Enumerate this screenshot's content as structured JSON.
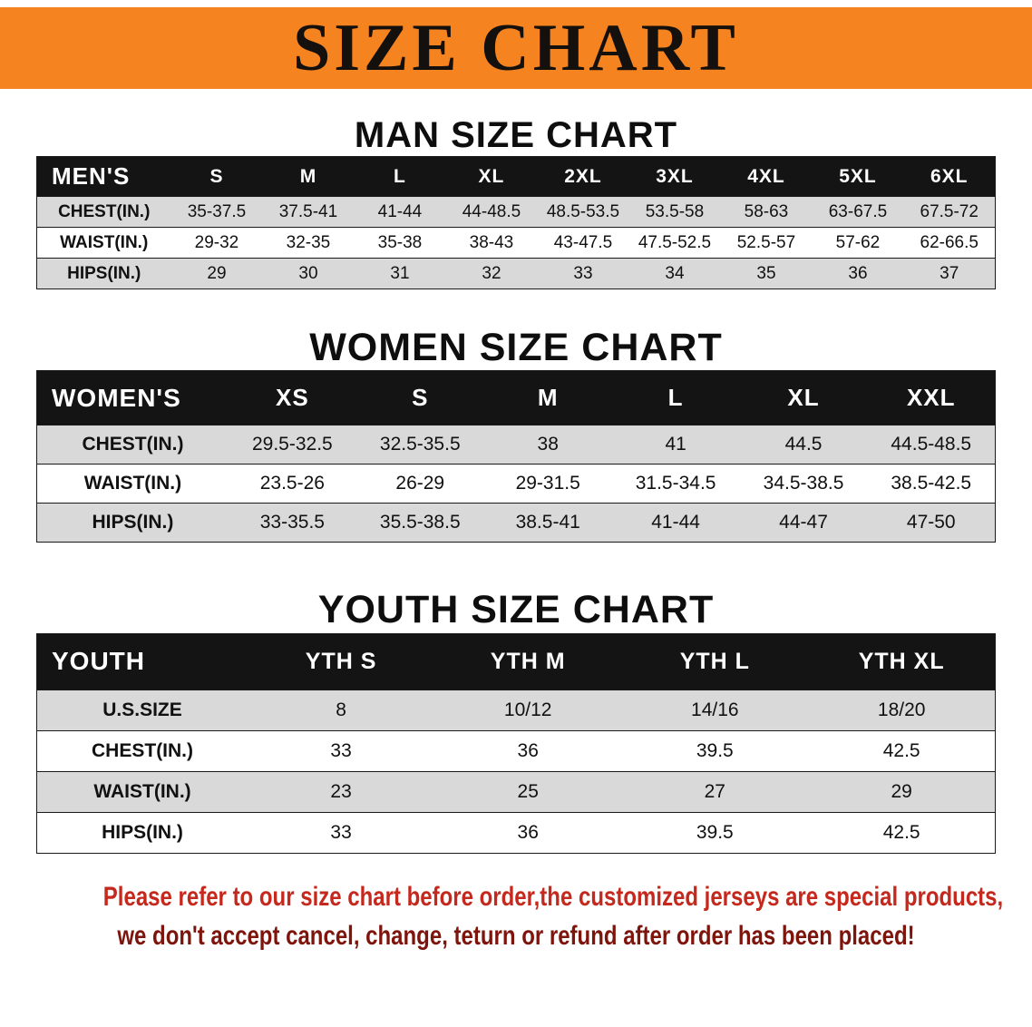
{
  "banner": {
    "title": "SIZE CHART"
  },
  "colors": {
    "banner_bg": "#F5831F",
    "table_header_bg": "#141414",
    "row_gray": "#D9D9D9",
    "row_white": "#FFFFFF",
    "footer_line1": "#C5281C",
    "footer_line2": "#7E150D"
  },
  "sections": [
    {
      "heading": "MAN SIZE CHART",
      "table": {
        "header": [
          "MEN'S",
          "S",
          "M",
          "L",
          "XL",
          "2XL",
          "3XL",
          "4XL",
          "5XL",
          "6XL"
        ],
        "rows": [
          [
            "CHEST(IN.)",
            "35-37.5",
            "37.5-41",
            "41-44",
            "44-48.5",
            "48.5-53.5",
            "53.5-58",
            "58-63",
            "63-67.5",
            "67.5-72"
          ],
          [
            "WAIST(IN.)",
            "29-32",
            "32-35",
            "35-38",
            "38-43",
            "43-47.5",
            "47.5-52.5",
            "52.5-57",
            "57-62",
            "62-66.5"
          ],
          [
            "HIPS(IN.)",
            "29",
            "30",
            "31",
            "32",
            "33",
            "34",
            "35",
            "36",
            "37"
          ]
        ]
      }
    },
    {
      "heading": "WOMEN SIZE CHART",
      "table": {
        "header": [
          "WOMEN'S",
          "XS",
          "S",
          "M",
          "L",
          "XL",
          "XXL"
        ],
        "rows": [
          [
            "CHEST(IN.)",
            "29.5-32.5",
            "32.5-35.5",
            "38",
            "41",
            "44.5",
            "44.5-48.5"
          ],
          [
            "WAIST(IN.)",
            "23.5-26",
            "26-29",
            "29-31.5",
            "31.5-34.5",
            "34.5-38.5",
            "38.5-42.5"
          ],
          [
            "HIPS(IN.)",
            "33-35.5",
            "35.5-38.5",
            "38.5-41",
            "41-44",
            "44-47",
            "47-50"
          ]
        ]
      }
    },
    {
      "heading": "YOUTH SIZE CHART",
      "table": {
        "header": [
          "YOUTH",
          "YTH S",
          "YTH M",
          "YTH L",
          "YTH XL"
        ],
        "rows": [
          [
            "U.S.SIZE",
            "8",
            "10/12",
            "14/16",
            "18/20"
          ],
          [
            "CHEST(IN.)",
            "33",
            "36",
            "39.5",
            "42.5"
          ],
          [
            "WAIST(IN.)",
            "23",
            "25",
            "27",
            "29"
          ],
          [
            "HIPS(IN.)",
            "33",
            "36",
            "39.5",
            "42.5"
          ]
        ]
      }
    }
  ],
  "footer": {
    "line1": "Please refer to our size chart before order,the customized jerseys are special products,",
    "line2": "we don't accept cancel, change, teturn or refund after order has been placed!"
  }
}
